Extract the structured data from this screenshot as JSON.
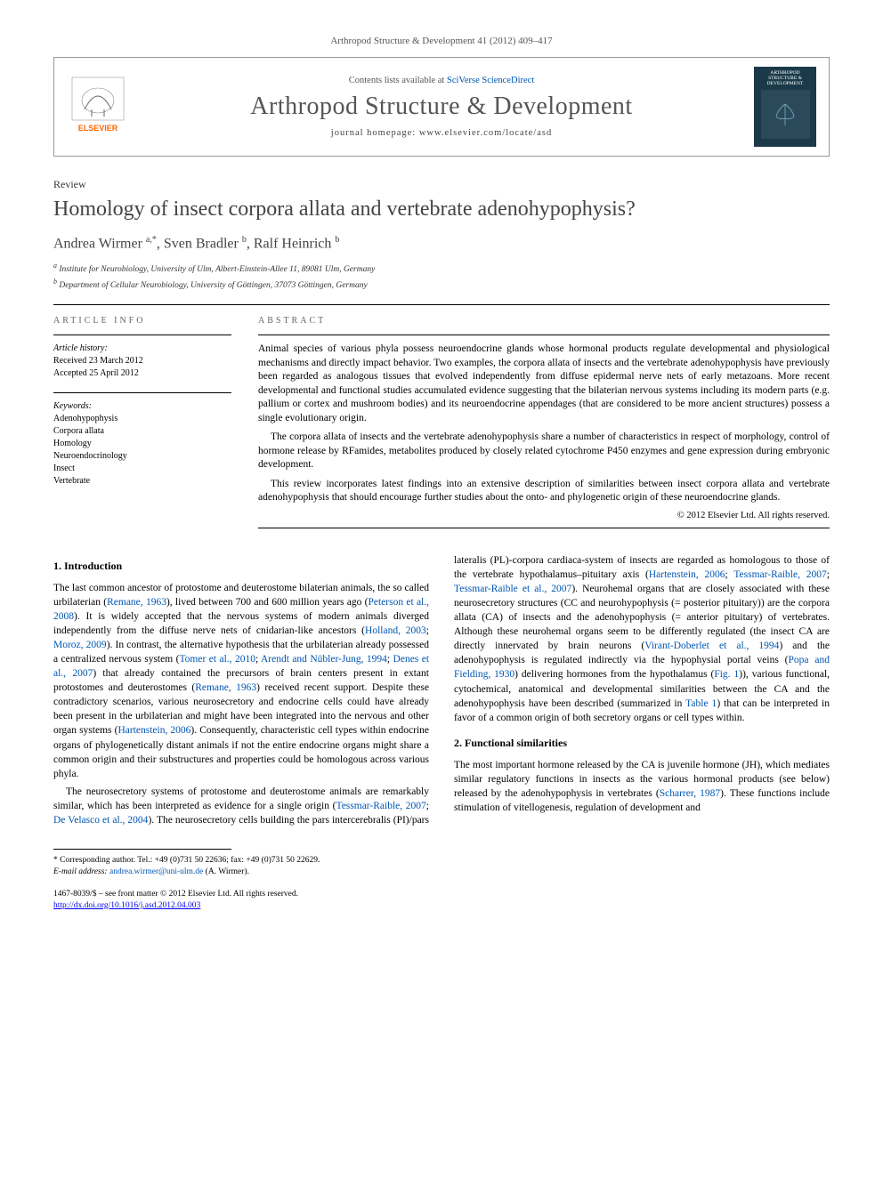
{
  "citation": "Arthropod Structure & Development 41 (2012) 409–417",
  "header": {
    "contents_prefix": "Contents lists available at ",
    "contents_link": "SciVerse ScienceDirect",
    "journal": "Arthropod Structure & Development",
    "homepage_prefix": "journal homepage: ",
    "homepage_url": "www.elsevier.com/locate/asd",
    "publisher": "ELSEVIER",
    "cover_label": "ARTHROPOD STRUCTURE & DEVELOPMENT"
  },
  "article_type": "Review",
  "title": "Homology of insect corpora allata and vertebrate adenohypophysis?",
  "authors_html": "Andrea Wirmer <sup>a,*</sup>, Sven Bradler <sup>b</sup>, Ralf Heinrich <sup>b</sup>",
  "affiliations": [
    "a Institute for Neurobiology, University of Ulm, Albert-Einstein-Allee 11, 89081 Ulm, Germany",
    "b Department of Cellular Neurobiology, University of Göttingen, 37073 Göttingen, Germany"
  ],
  "article_info": {
    "label": "ARTICLE INFO",
    "history_label": "Article history:",
    "received": "Received 23 March 2012",
    "accepted": "Accepted 25 April 2012",
    "keywords_label": "Keywords:",
    "keywords": [
      "Adenohypophysis",
      "Corpora allata",
      "Homology",
      "Neuroendocrinology",
      "Insect",
      "Vertebrate"
    ]
  },
  "abstract": {
    "label": "ABSTRACT",
    "paragraphs": [
      "Animal species of various phyla possess neuroendocrine glands whose hormonal products regulate developmental and physiological mechanisms and directly impact behavior. Two examples, the corpora allata of insects and the vertebrate adenohypophysis have previously been regarded as analogous tissues that evolved independently from diffuse epidermal nerve nets of early metazoans. More recent developmental and functional studies accumulated evidence suggesting that the bilaterian nervous systems including its modern parts (e.g. pallium or cortex and mushroom bodies) and its neuroendocrine appendages (that are considered to be more ancient structures) possess a single evolutionary origin.",
      "The corpora allata of insects and the vertebrate adenohypophysis share a number of characteristics in respect of morphology, control of hormone release by RFamides, metabolites produced by closely related cytochrome P450 enzymes and gene expression during embryonic development.",
      "This review incorporates latest findings into an extensive description of similarities between insect corpora allata and vertebrate adenohypophysis that should encourage further studies about the onto- and phylogenetic origin of these neuroendocrine glands."
    ],
    "copyright": "© 2012 Elsevier Ltd. All rights reserved."
  },
  "sections": {
    "intro_heading": "1. Introduction",
    "intro_p1_pre": "The last common ancestor of protostome and deuterostome bilaterian animals, the so called urbilaterian (",
    "intro_ref1": "Remane, 1963",
    "intro_p1_mid1": "), lived between 700 and 600 million years ago (",
    "intro_ref2": "Peterson et al., 2008",
    "intro_p1_mid2": "). It is widely accepted that the nervous systems of modern animals diverged independently from the diffuse nerve nets of cnidarian-like ancestors (",
    "intro_ref3": "Holland, 2003",
    "intro_sep1": "; ",
    "intro_ref4": "Moroz, 2009",
    "intro_p1_mid3": "). In contrast, the alternative hypothesis that the urbilaterian already possessed a centralized nervous system (",
    "intro_ref5": "Tomer et al., 2010",
    "intro_ref6": "Arendt and Nübler-Jung, 1994",
    "intro_ref7": "Denes et al., 2007",
    "intro_p1_mid4": ") that already contained the precursors of brain centers present in extant protostomes and deuterostomes (",
    "intro_ref8": "Remane, 1963",
    "intro_p1_mid5": ") received recent support. Despite these contradictory scenarios, various neurosecretory and endocrine cells could have already been present in the urbilaterian and might have been integrated into the nervous and other organ systems (",
    "intro_ref9": "Hartenstein, 2006",
    "intro_p1_end": "). Consequently, characteristic cell types within endocrine organs of phylogenetically distant animals if not the entire endocrine organs might share a common origin and their substructures and properties could be homologous across various phyla.",
    "intro_p2_pre": "The neurosecretory systems of protostome and deuterostome animals are remarkably similar, which has been interpreted as evidence for a single origin (",
    "intro_ref10": "Tessmar-Raible, 2007",
    "intro_ref11": "De Velasco et al., 2004",
    "intro_p2_mid1": "). The neurosecretory cells building the pars intercerebralis (PI)/pars lateralis (PL)-corpora cardiaca-system of insects are regarded as homologous to those of the vertebrate hypothalamus–pituitary axis (",
    "intro_ref12": "Hartenstein, 2006",
    "intro_ref13": "Tessmar-Raible, 2007",
    "intro_ref14": "Tessmar-Raible et al., 2007",
    "intro_p2_mid2": "). Neurohemal organs that are closely associated with these neurosecretory structures (CC and neurohypophysis (= posterior pituitary)) are the corpora allata (CA) of insects and the adenohypophysis (= anterior pituitary) of vertebrates. Although these neurohemal organs seem to be differently regulated (the insect CA are directly innervated by brain neurons (",
    "intro_ref15": "Virant-Doberlet et al., 1994",
    "intro_p2_mid3": ") and the adenohypophysis is regulated indirectly via the hypophysial portal veins (",
    "intro_ref16": "Popa and Fielding, 1930",
    "intro_p2_mid4": ") delivering hormones from the hypothalamus (",
    "intro_ref17": "Fig. 1",
    "intro_p2_mid5": ")), various functional, cytochemical, anatomical and developmental similarities between the CA and the adenohypophysis have been described (summarized in ",
    "intro_ref18": "Table 1",
    "intro_p2_end": ") that can be interpreted in favor of a common origin of both secretory organs or cell types within.",
    "func_heading": "2. Functional similarities",
    "func_p1_pre": "The most important hormone released by the CA is juvenile hormone (JH), which mediates similar regulatory functions in insects as the various hormonal products (see below) released by the adenohypophysis in vertebrates (",
    "func_ref1": "Scharrer, 1987",
    "func_p1_end": "). These functions include stimulation of vitellogenesis, regulation of development and"
  },
  "footer": {
    "corresponding_label": "* Corresponding author. Tel.: ",
    "tel": "+49 (0)731 50 22636",
    "fax_label": "; fax: ",
    "fax": "+49 (0)731 50 22629.",
    "email_label": "E-mail address: ",
    "email": "andrea.wirmer@uni-ulm.de",
    "email_suffix": " (A. Wirmer).",
    "issn": "1467-8039/$ – see front matter © 2012 Elsevier Ltd. All rights reserved.",
    "doi_label": "",
    "doi": "http://dx.doi.org/10.1016/j.asd.2012.04.003"
  },
  "colors": {
    "link": "#0056b3",
    "text": "#000000",
    "muted": "#555555",
    "cover_bg": "#1a3a4a",
    "elsevier_orange": "#ff6600"
  }
}
